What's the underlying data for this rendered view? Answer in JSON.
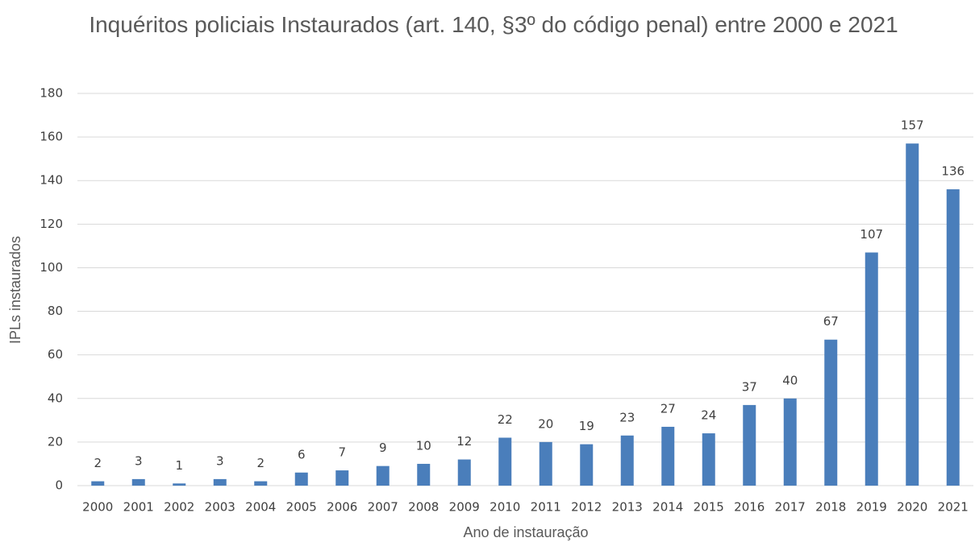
{
  "chart_data": {
    "type": "bar",
    "title": "Inquéritos policiais Instaurados (art. 140, §3º do código penal) entre 2000 e 2021",
    "x_label": "Ano de instauração",
    "y_label": "IPLs instaurados",
    "categories": [
      "2000",
      "2001",
      "2002",
      "2003",
      "2004",
      "2005",
      "2006",
      "2007",
      "2008",
      "2009",
      "2010",
      "2011",
      "2012",
      "2013",
      "2014",
      "2015",
      "2016",
      "2017",
      "2018",
      "2019",
      "2020",
      "2021"
    ],
    "values": [
      2,
      3,
      1,
      3,
      2,
      6,
      7,
      9,
      10,
      12,
      22,
      20,
      19,
      23,
      27,
      24,
      37,
      40,
      67,
      107,
      157,
      136
    ],
    "color": "#4a7ebb",
    "ylim": [
      0,
      180
    ],
    "yticks": [
      0,
      20,
      40,
      60,
      80,
      100,
      120,
      140,
      160,
      180
    ],
    "grid": true
  }
}
